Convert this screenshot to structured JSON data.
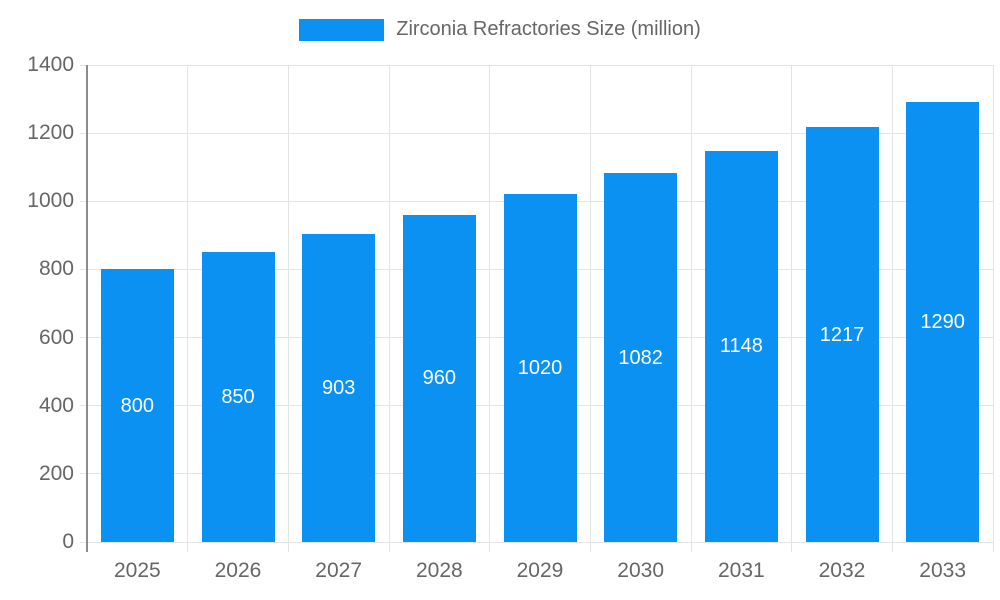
{
  "chart_data": {
    "type": "bar",
    "title": "Zirconia Refractories Size (million)",
    "series_name": "Zirconia Refractories Size (million)",
    "categories": [
      "2025",
      "2026",
      "2027",
      "2028",
      "2029",
      "2030",
      "2031",
      "2032",
      "2033"
    ],
    "values": [
      800,
      850,
      903,
      960,
      1020,
      1082,
      1148,
      1217,
      1290
    ],
    "xlabel": "",
    "ylabel": "",
    "ylim": [
      0,
      1400
    ],
    "yticks": [
      0,
      200,
      400,
      600,
      800,
      1000,
      1200,
      1400
    ],
    "grid": true,
    "legend_position": "top-center",
    "bar_color": "#0a91f2",
    "value_label_color": "#ffffff",
    "axis_text_color": "#666666",
    "grid_color": "#e4e4e4",
    "axis_line_color": "#8c8c8c",
    "background_color": "#ffffff"
  }
}
